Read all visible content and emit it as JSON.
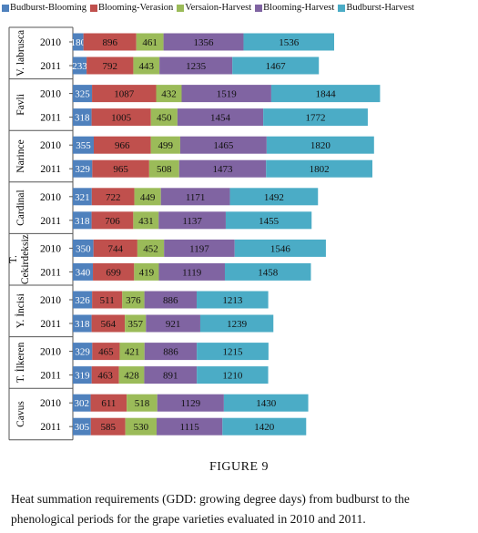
{
  "chart_data": {
    "type": "bar",
    "orientation": "horizontal",
    "stacked": true,
    "legend_position": "top",
    "grid": false,
    "groups": [
      {
        "name": "V. labrusca",
        "years": [
          "2010",
          "2011"
        ]
      },
      {
        "name": "Favli",
        "years": [
          "2010",
          "2011"
        ]
      },
      {
        "name": "Narince",
        "years": [
          "2010",
          "2011"
        ]
      },
      {
        "name": "Cardinal",
        "years": [
          "2010",
          "2011"
        ]
      },
      {
        "name": "T. Cekirdeksiz",
        "years": [
          "2010",
          "2011"
        ]
      },
      {
        "name": "Y. İncisi",
        "years": [
          "2010",
          "2011"
        ]
      },
      {
        "name": "T. İlkeren",
        "years": [
          "2010",
          "2011"
        ]
      },
      {
        "name": "Cavus",
        "years": [
          "2010",
          "2011"
        ]
      }
    ],
    "series": [
      {
        "name": "Budburst-Blooming",
        "color": "#4f81bd",
        "values": [
          180,
          233,
          325,
          318,
          355,
          329,
          321,
          318,
          350,
          340,
          326,
          318,
          329,
          319,
          302,
          305
        ]
      },
      {
        "name": "Blooming-Verasion",
        "color": "#c0504d",
        "values": [
          896,
          792,
          1087,
          1005,
          966,
          965,
          722,
          706,
          744,
          699,
          511,
          564,
          465,
          463,
          611,
          585
        ]
      },
      {
        "name": "Versaion-Harvest",
        "color": "#9bbb59",
        "values": [
          461,
          443,
          432,
          450,
          499,
          508,
          449,
          431,
          452,
          419,
          376,
          357,
          421,
          428,
          518,
          530
        ]
      },
      {
        "name": "Blooming-Harvest",
        "color": "#8064a2",
        "values": [
          1356,
          1235,
          1519,
          1454,
          1465,
          1473,
          1171,
          1137,
          1197,
          1119,
          886,
          921,
          886,
          891,
          1129,
          1115
        ]
      },
      {
        "name": "Budburst-Harvest",
        "color": "#4bacc6",
        "values": [
          1536,
          1467,
          1844,
          1772,
          1820,
          1802,
          1492,
          1455,
          1546,
          1458,
          1213,
          1239,
          1215,
          1210,
          1430,
          1420
        ]
      }
    ]
  },
  "figure_label": "FIGURE 9",
  "caption": "Heat summation requirements (GDD: growing degree days) from budburst to the phenological periods for the grape varieties evaluated in 2010 and 2011."
}
